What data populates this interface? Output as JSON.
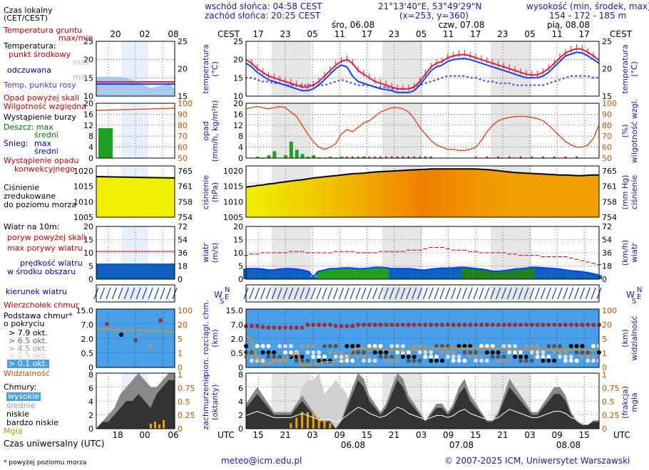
{
  "header": {
    "sunrise": "wschód słońca: 04:58 CEST",
    "sunset": "zachód słońca: 20:25 CEST",
    "coords": "21°13'40\"E, 53°49'29\"N",
    "grid": "(x=253,  y=360)",
    "alt_title": "wysokość (min, środek, max)",
    "alt_values": "154 - 172 - 185 m"
  },
  "time_axis": {
    "cest_label": "CEST",
    "utc_label": "UTC",
    "day_labels": [
      "śro, 06.08",
      "czw, 07.08",
      "pią, 08.08"
    ],
    "cest_ticks": [
      "17",
      "23",
      "05",
      "11",
      "17",
      "23",
      "05",
      "11",
      "17",
      "23",
      "05",
      "11",
      "17"
    ],
    "utc_ticks": [
      "15",
      "21",
      "03",
      "09",
      "15",
      "21",
      "03",
      "09",
      "15",
      "21",
      "03",
      "09",
      "15"
    ],
    "utc_dates": [
      "06.08",
      "07.08",
      "08.08"
    ],
    "local_ticks_top": [
      "20",
      "02",
      "08"
    ],
    "local_ticks_bottom": [
      "18",
      "00",
      "06"
    ]
  },
  "legend": {
    "local_time": "Czas lokalny",
    "local_time2": "(CET/CEST)",
    "soil_temp": "Temperatura gruntu",
    "soil_temp2": "max/min",
    "temperature": "Temperatura:",
    "mid_point": "punkt środkowy",
    "max": "max",
    "min": "min",
    "feels": "odczuwana",
    "dewpoint": "Temp. punktu rosy",
    "precip_above": "Opad powyżej skali",
    "humidity": "Wilgotność względna",
    "storm": "Wystąpienie burzy",
    "rain": "Deszcz: max",
    "rain_mid": "średni",
    "snow": "Śnieg:",
    "snow_max": "max",
    "snow_mid": "średni",
    "precip_occ": "Wystąpienie opadu",
    "convective": "konwekcyjnego",
    "pressure": "Ciśnienie",
    "pressure2": "zredukowane",
    "pressure3": "do poziomu morza",
    "wind": "Wiatr na 10m:",
    "gust_above": "poryw powyżej skali",
    "max_gust": "max porywy wiatru",
    "wind_speed": "prędkość wiatru",
    "wind_speed2": "w środku obszaru",
    "wind_dir": "kierunek wiatru",
    "cloud_top": "Wierzchołek chmur",
    "cloud_base": "Podstawa chmur*",
    "coverage": "o pokryciu",
    "okt79": "> 7.9 okt.",
    "okt65": "> 6.5 okt.",
    "okt45": "> 4.5 okt.",
    "okt25": "> 2.5 okt.",
    "okt01": "> 0.1 okt.",
    "visibility": "Widzialność",
    "clouds": "Chmury:",
    "high": "wysokie",
    "medium": "średnie",
    "low": "niskie",
    "very_low": "bardzo niskie",
    "fog": "Mgła",
    "utc_time": "Czas uniwersalny (UTC)",
    "footnote": "* powyżej poziomu morza"
  },
  "axis_labels": {
    "temp_left": "temperatura",
    "temp_unit_left": "(°C)",
    "temp_right": "temperatura",
    "temp_unit_right": "(°C)",
    "precip_left": "opad",
    "precip_unit_left": "(mm/h, kg/m²h)",
    "hum_right": "wilgotność wzgl.",
    "hum_unit_right": "(%)",
    "press_left": "ciśnienie",
    "press_unit_left": "(hPa)",
    "press_right": "ciśnienie",
    "press_unit_right": "(mm Hg)",
    "wind_left": "wiatr",
    "wind_unit_left": "(m/s)",
    "wind_right": "wiatr",
    "wind_unit_right": "(km/h)",
    "cloud_left": "pion. rozciągł. chm.",
    "cloud_unit_left": "(km)",
    "vis_right": "widzialność",
    "vis_unit_right": "(km)",
    "cover_left": "zachmurzenie",
    "cover_unit_left": "(oktanty)",
    "fog_right": "mgła",
    "fog_unit_right": "(frakcja)"
  },
  "colors": {
    "temp_line": "#e0203a",
    "feels_line": "#1040ff",
    "dew_dots": "#6060e0",
    "humidity_line": "#e05020",
    "rain_bars": "#20a020",
    "pressure_fill": "#f0a000",
    "gust_marks": "#c00000",
    "wind_band": "#1060c0",
    "cloud_bg": "#49a0e8",
    "visibility_line": "#f09000"
  },
  "chart_data": [
    {
      "type": "line",
      "name": "temperature",
      "yticks_left": [
        "25",
        "20",
        "15",
        "10"
      ],
      "yticks_right": [
        "25",
        "20",
        "15"
      ],
      "ylim": [
        10,
        25
      ],
      "series": [
        {
          "values": [
            20,
            19,
            17.5,
            16.5,
            15.5,
            15,
            14.5,
            14,
            13.5,
            13,
            12.5,
            12.5,
            13,
            14,
            15.5,
            17,
            18.5,
            19.5,
            20,
            19,
            17,
            16,
            15,
            14,
            13.5,
            13,
            12.5,
            12,
            12,
            12,
            12.5,
            14,
            16,
            18,
            19,
            19.5,
            20.5,
            21,
            21.3,
            21.4,
            21,
            20.5,
            20,
            19.5,
            19,
            18.5,
            18,
            17.5,
            17,
            16.5,
            16,
            15.8,
            15.8,
            16.5,
            17.5,
            19,
            20.5,
            21.8,
            22.5,
            23,
            22.8,
            22,
            21,
            19.8
          ]
        },
        {
          "values": [
            19,
            18,
            16.5,
            15.5,
            14.5,
            14,
            13.5,
            13,
            12.5,
            12,
            11.5,
            11.5,
            12,
            13,
            14.5,
            16,
            17.5,
            18.5,
            18,
            15.5,
            14,
            13.5,
            13,
            12.5,
            12,
            11.8,
            11.5,
            11,
            11,
            11,
            11.5,
            13,
            15,
            17,
            18,
            18.5,
            19.5,
            20,
            20.2,
            20.3,
            20,
            19.5,
            19,
            18.5,
            18,
            17.5,
            17,
            16.5,
            16,
            15.5,
            15,
            15,
            15,
            15.5,
            16.5,
            18,
            19.5,
            21,
            21.5,
            22,
            21.8,
            21,
            20,
            19
          ]
        },
        {
          "values": [
            15,
            15,
            14.5,
            14,
            14,
            13.5,
            13.5,
            13,
            13,
            13,
            13,
            13,
            13,
            13,
            13,
            13.5,
            14,
            14.5,
            14,
            13.5,
            13,
            13,
            13,
            12.5,
            12.5,
            12.5,
            12,
            12,
            12,
            12,
            12.5,
            13,
            13.5,
            14,
            14.5,
            15,
            15.5,
            15.5,
            15.5,
            15.5,
            15,
            15,
            14.5,
            14,
            14,
            13.5,
            13.5,
            13.5,
            13,
            13,
            13,
            13,
            13,
            13,
            13.5,
            14,
            14.5,
            15,
            15.5,
            15.5,
            15.5,
            15.5,
            15,
            15
          ]
        }
      ]
    },
    {
      "type": "bar",
      "name": "precipitation-humidity",
      "yticks_left": [
        "20",
        "16",
        "12",
        "8",
        "4",
        "0"
      ],
      "yticks_right": [
        "100",
        "90",
        "80",
        "70",
        "60",
        "50"
      ],
      "ylim_left": [
        0,
        20
      ],
      "ylim_right": [
        50,
        100
      ],
      "series": [
        {
          "values": [
            0,
            0,
            0.5,
            0.2,
            1,
            2.5,
            0,
            1,
            6,
            3,
            1.5,
            0.5,
            1,
            0.3,
            0.2,
            0.5,
            0.2,
            0.5,
            0,
            0.2,
            0,
            0.5,
            0,
            0,
            0,
            0,
            0,
            0,
            0,
            0,
            0,
            0,
            0,
            0,
            0,
            0,
            0,
            0,
            0,
            0,
            0,
            0,
            0,
            0,
            0,
            0,
            0,
            0,
            0,
            0,
            0,
            0,
            0,
            0,
            0,
            0,
            0,
            0,
            0,
            0,
            0,
            0,
            0,
            0
          ]
        },
        {
          "values": [
            95,
            96,
            97,
            96,
            95,
            96,
            97,
            96,
            92,
            88,
            80,
            72,
            65,
            60,
            58,
            60,
            63,
            72,
            76,
            74,
            78,
            82,
            84,
            88,
            92,
            94,
            96,
            96,
            95,
            92,
            86,
            78,
            72,
            66,
            62,
            60,
            58,
            58,
            57,
            57,
            58,
            60,
            66,
            74,
            80,
            84,
            86,
            87,
            88,
            88,
            88,
            87,
            86,
            84,
            80,
            75,
            70,
            65,
            62,
            60,
            60,
            62,
            68,
            80
          ]
        }
      ]
    },
    {
      "type": "area",
      "name": "pressure",
      "yticks_left": [
        "1020",
        "1015",
        "1010",
        "1005"
      ],
      "yticks_right": [
        "765",
        "761",
        "758",
        "754"
      ],
      "ylim": [
        1005,
        1022
      ],
      "series": [
        {
          "values": [
            1015,
            1015.2,
            1015.5,
            1015.7,
            1016,
            1016.2,
            1016.5,
            1016.7,
            1017,
            1017.2,
            1017.4,
            1017.7,
            1018,
            1018.2,
            1018.4,
            1018.6,
            1018.8,
            1019,
            1019.2,
            1019.4,
            1019.5,
            1019.6,
            1019.8,
            1020,
            1020.1,
            1020.2,
            1020.3,
            1020.4,
            1020.5,
            1020.6,
            1020.7,
            1020.8,
            1020.9,
            1021,
            1021,
            1021,
            1021,
            1021,
            1021,
            1021,
            1021,
            1021,
            1020.9,
            1020.8,
            1020.6,
            1020.4,
            1020.2,
            1020,
            1019.8,
            1019.7,
            1019.6,
            1019.5,
            1019.4,
            1019.3,
            1019.2,
            1019.1,
            1019,
            1019,
            1018.9,
            1018.8,
            1018.8,
            1018.9,
            1019,
            1019
          ]
        }
      ]
    },
    {
      "type": "area",
      "name": "wind",
      "yticks_left": [
        "20",
        "15",
        "10",
        "5",
        "0"
      ],
      "yticks_right": [
        "72",
        "54",
        "36",
        "18",
        "0"
      ],
      "ylim": [
        0,
        20
      ],
      "series": [
        {
          "values": [
            4,
            4,
            4,
            3.8,
            3.5,
            3.5,
            3.8,
            4,
            4,
            3.8,
            3.5,
            3,
            1,
            3,
            3.5,
            4,
            4,
            4.2,
            4.3,
            4.2,
            4,
            4,
            4.2,
            4.5,
            4.5,
            4.3,
            4,
            4,
            4,
            4,
            3.8,
            3.5,
            3.5,
            3.8,
            4,
            4.2,
            4.2,
            4.3,
            4.5,
            4.5,
            4.3,
            4,
            3.8,
            3.5,
            3,
            3,
            3.2,
            3.5,
            3.8,
            4,
            4.2,
            4.5,
            4.5,
            4.3,
            4.2,
            4,
            3.8,
            3.5,
            3.2,
            3,
            2.8,
            2.5,
            2,
            1.5
          ]
        },
        {
          "values": [
            9,
            9.5,
            9.5,
            10,
            10,
            10,
            10,
            10,
            10.5,
            10.5,
            10.5,
            10,
            10,
            10,
            10,
            10,
            10.5,
            10.5,
            10.5,
            10.5,
            10,
            10,
            10,
            10,
            10.5,
            10.5,
            10.5,
            10.5,
            10.5,
            11,
            11,
            11,
            11.5,
            12,
            12,
            12,
            11.5,
            11,
            11,
            11,
            10.5,
            10.5,
            10,
            10,
            10,
            10,
            10,
            9.5,
            9.5,
            9,
            9,
            9,
            9,
            8.5,
            8.5,
            8.5,
            8.5,
            8.5,
            8,
            7.5,
            7,
            6.5,
            6,
            5.5
          ]
        }
      ]
    },
    {
      "type": "scatter",
      "name": "cloud-base-visibility",
      "yticks_left": [
        "15.0",
        "7.0",
        "2.0",
        "0.5",
        "0"
      ],
      "yticks_right": [
        "100",
        "20",
        "5",
        "1",
        "0"
      ],
      "ylim": [
        0,
        15
      ],
      "series": [
        {
          "values": [
            7.5,
            7.5,
            7.5,
            7.2,
            7,
            7,
            7,
            7,
            7,
            7,
            7,
            8,
            8,
            8,
            8,
            8,
            7.5,
            7.5,
            7.5,
            7.5,
            8,
            8,
            8,
            8,
            8,
            8,
            8,
            8,
            8,
            8,
            8,
            8,
            8,
            8,
            8,
            8,
            8,
            8,
            8,
            8,
            8,
            8,
            8,
            8,
            8,
            8,
            8,
            8,
            8,
            8,
            8,
            8,
            8,
            8,
            8,
            8,
            8,
            8,
            8,
            8,
            8,
            8,
            8,
            8
          ]
        },
        {
          "values": [
            8,
            7,
            2,
            1,
            1,
            1.5,
            2,
            2,
            3,
            4,
            0.3,
            0.5,
            0.8,
            1,
            1.5,
            1.5,
            1.5,
            2,
            2.5,
            4.5,
            5,
            5,
            5,
            5,
            4.5,
            4.5,
            4.5,
            4.5,
            4,
            4.5,
            4.5,
            4.5,
            4.5,
            4.5,
            5,
            5,
            5,
            5,
            5,
            5,
            5,
            5,
            5,
            5,
            5,
            5,
            5,
            4.5,
            4.5,
            4.5,
            4.5,
            4.5,
            4.5,
            4.5,
            4.5,
            4.5,
            4.5,
            4.5,
            4.5,
            4.5,
            4.5,
            4.5,
            4.5,
            4.5
          ]
        }
      ]
    },
    {
      "type": "area",
      "name": "cloud-cover-fog",
      "yticks_left": [
        "8",
        "6",
        "4",
        "2",
        "0"
      ],
      "yticks_right": [
        "1",
        "0.75",
        "0.5",
        "0.25",
        "0"
      ],
      "ylim": [
        0,
        8
      ],
      "series": [
        {
          "name": "wysokie",
          "values": [
            0,
            0,
            0,
            1,
            0,
            0,
            0,
            0,
            2,
            3,
            6,
            7,
            7,
            8,
            5,
            6,
            7,
            6,
            5,
            2,
            0,
            0,
            0,
            0,
            0,
            0,
            0,
            0,
            0,
            0,
            0,
            0,
            0,
            0,
            3,
            2,
            1,
            4,
            6,
            7,
            5,
            4,
            2,
            1,
            1,
            2,
            3,
            4,
            1,
            0,
            0,
            0,
            0,
            0,
            0,
            0,
            0,
            0,
            0,
            0,
            1,
            0,
            0,
            0
          ]
        },
        {
          "name": "niskie",
          "values": [
            3,
            4,
            5,
            4,
            3,
            2,
            2,
            2,
            2,
            3,
            4,
            3,
            2,
            1,
            1,
            1,
            0,
            1,
            3,
            5,
            7,
            6,
            4,
            3,
            2,
            3,
            5,
            7,
            6,
            4,
            3,
            2,
            1,
            2,
            3,
            3,
            2,
            3,
            5,
            6,
            4,
            3,
            2,
            1,
            1,
            2,
            4,
            6,
            5,
            4,
            3,
            2,
            2,
            3,
            4,
            5,
            5,
            4,
            2,
            1,
            0.5,
            0.5,
            1,
            1
          ]
        },
        {
          "name": "Mgła",
          "values": [
            0,
            0,
            0,
            0,
            0,
            0,
            0,
            0,
            0.1,
            0.2,
            0.3,
            0.3,
            0.3,
            0.2,
            0.15,
            0.1,
            0,
            0,
            0,
            0,
            0,
            0,
            0,
            0,
            0,
            0,
            0,
            0,
            0,
            0,
            0,
            0,
            0,
            0,
            0,
            0,
            0,
            0,
            0,
            0,
            0,
            0,
            0,
            0,
            0,
            0,
            0,
            0,
            0,
            0,
            0,
            0,
            0,
            0,
            0,
            0,
            0,
            0,
            0,
            0,
            0,
            0,
            0,
            0
          ]
        }
      ]
    }
  ]
}
